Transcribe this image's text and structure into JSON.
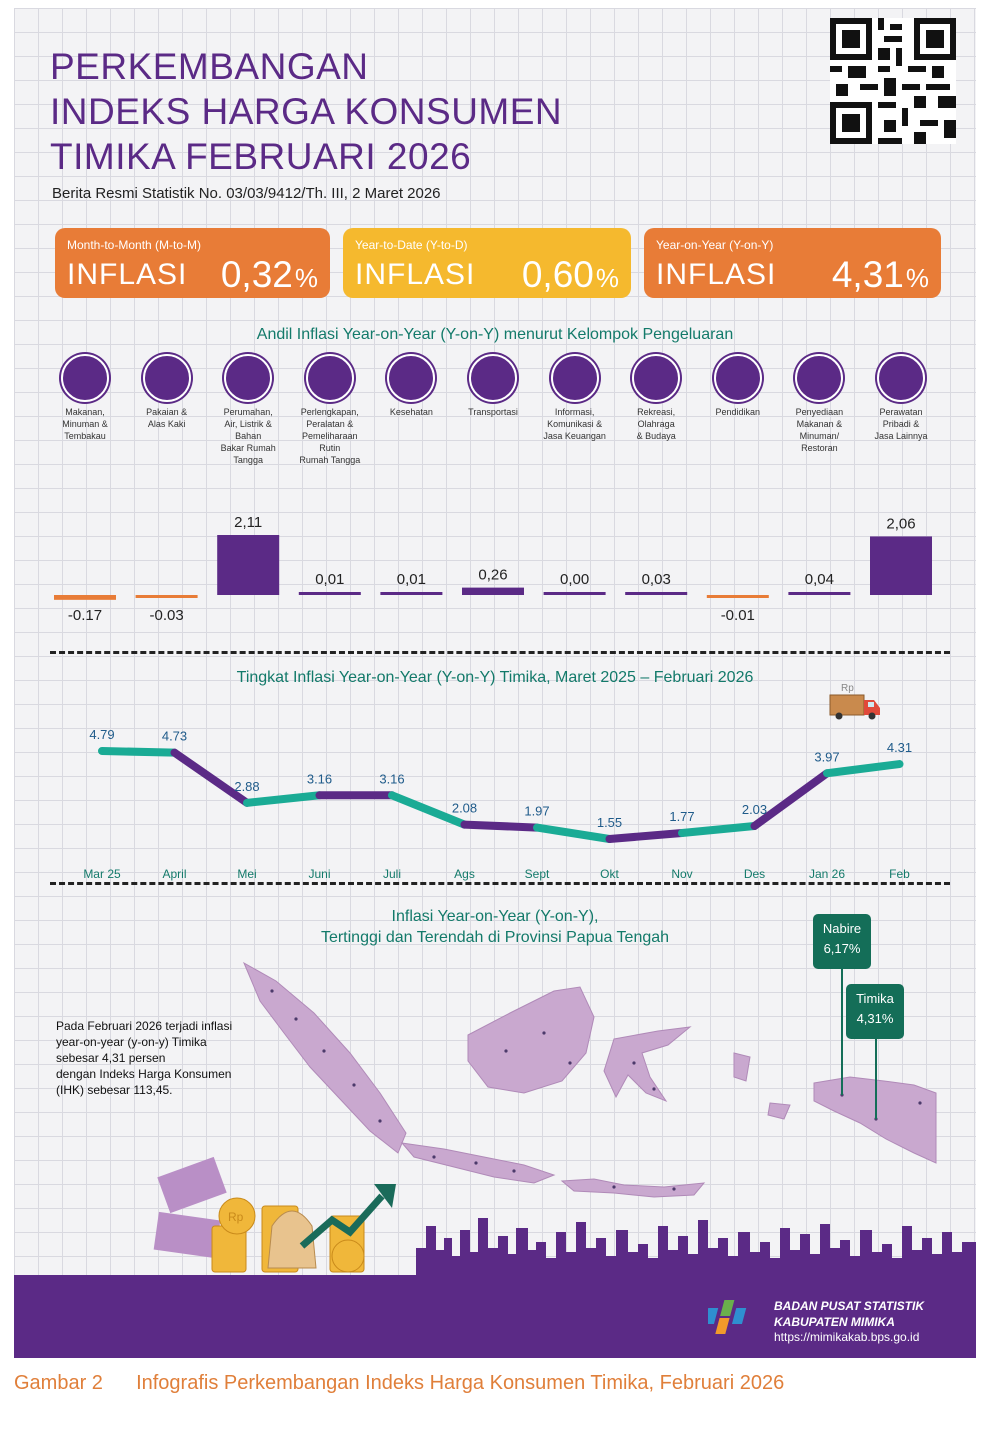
{
  "title_lines": [
    "PERKEMBANGAN",
    "INDEKS HARGA KONSUMEN",
    "TIMIKA FEBRUARI 2026"
  ],
  "subtitle": "Berita Resmi Statistik No. 03/03/9412/Th. III, 2 Maret 2026",
  "cards": [
    {
      "label": "Month-to-Month (M-to-M)",
      "keyword": "INFLASI",
      "value": "0,32",
      "unit": "%",
      "color": "#e87c37"
    },
    {
      "label": "Year-to-Date (Y-to-D)",
      "keyword": "INFLASI",
      "value": "0,60",
      "unit": "%",
      "color": "#f5b92e"
    },
    {
      "label": "Year-on-Year (Y-on-Y)",
      "keyword": "INFLASI",
      "value": "4,31",
      "unit": "%",
      "color": "#e87c37"
    }
  ],
  "colors": {
    "purple": "#5b2a86",
    "teal": "#1aab95",
    "orange": "#e87c37",
    "dark_green": "#146e58"
  },
  "chart_data": [
    {
      "type": "bar",
      "title": "Andil Inflasi Year-on-Year (Y-on-Y) menurut Kelompok Pengeluaran",
      "categories": [
        "Makanan, Minuman & Tembakau",
        "Pakaian & Alas Kaki",
        "Perumahan, Air, Listrik & Bahan Bakar Rumah Tangga",
        "Perlengkapan, Peralatan & Pemeliharaan Rutin Rumah Tangga",
        "Kesehatan",
        "Transportasi",
        "Informasi, Komunikasi & Jasa Keuangan",
        "Rekreasi, Olahraga & Budaya",
        "Pendidikan",
        "Penyediaan Makanan & Minuman/ Restoran",
        "Perawatan Pribadi & Jasa Lainnya"
      ],
      "category_lines": [
        [
          "Makanan,",
          "Minuman &",
          "Tembakau"
        ],
        [
          "Pakaian &",
          "Alas Kaki"
        ],
        [
          "Perumahan,",
          "Air, Listrik &",
          "Bahan",
          "Bakar Rumah",
          "Tangga"
        ],
        [
          "Perlengkapan,",
          "Peralatan &",
          "Pemeliharaan",
          "Rutin",
          "Rumah Tangga"
        ],
        [
          "Kesehatan"
        ],
        [
          "Transportasi"
        ],
        [
          "Informasi,",
          "Komunikasi &",
          "Jasa Keuangan"
        ],
        [
          "Rekreasi,",
          "Olahraga",
          "& Budaya"
        ],
        [
          "Pendidikan"
        ],
        [
          "Penyediaan",
          "Makanan &",
          "Minuman/",
          "Restoran"
        ],
        [
          "Perawatan",
          "Pribadi &",
          "Jasa Lainnya"
        ]
      ],
      "icons": [
        "grocery-bag-icon",
        "dress-icon",
        "house-icon",
        "appliance-icon",
        "medical-kit-icon",
        "airplane-icon",
        "smartphone-icon",
        "soccer-player-icon",
        "graduation-cap-icon",
        "fast-food-icon",
        "scissors-comb-icon"
      ],
      "values": [
        -0.17,
        -0.03,
        2.11,
        0.01,
        0.01,
        0.26,
        0.0,
        0.03,
        -0.01,
        0.04,
        2.06
      ],
      "labels": [
        "-0,17",
        "-0,03",
        "2,11",
        "0,01",
        "0,01",
        "0,26",
        "0,00",
        "0,03",
        "-0,01",
        "0,04",
        "2,06"
      ],
      "ylim": [
        -0.17,
        2.11
      ]
    },
    {
      "type": "line",
      "title": "Tingkat Inflasi Year-on-Year (Y-on-Y) Timika, Maret 2025 – Februari 2026",
      "categories": [
        "Mar 25",
        "April",
        "Mei",
        "Juni",
        "Juli",
        "Ags",
        "Sept",
        "Okt",
        "Nov",
        "Des",
        "Jan 26",
        "Feb"
      ],
      "values": [
        4.79,
        4.73,
        2.88,
        3.16,
        3.16,
        2.08,
        1.97,
        1.55,
        1.77,
        2.03,
        3.97,
        4.31
      ],
      "labels": [
        "4.79",
        "4.73",
        "2.88",
        "3.16",
        "3.16",
        "2.08",
        "1.97",
        "1.55",
        "1.77",
        "2.03",
        "3.97",
        "4.31"
      ],
      "ylim": [
        1.55,
        4.79
      ],
      "truck_label": "Rp"
    }
  ],
  "map": {
    "title_lines": [
      "Inflasi Year-on-Year (Y-on-Y),",
      "Tertinggi dan Terendah di Provinsi Papua Tengah"
    ],
    "paragraph_lines": [
      "Pada Februari 2026 terjadi inflasi",
      "year-on-year (y-on-y) Timika",
      "sebesar 4,31 persen",
      "dengan Indeks Harga Konsumen",
      "(IHK) sebesar 113,45."
    ],
    "callouts": [
      {
        "name": "Nabire",
        "value": "6,17%"
      },
      {
        "name": "Timika",
        "value": "4,31%"
      }
    ]
  },
  "decor": {
    "coin_label": "Rp"
  },
  "footer": {
    "org_line1": "BADAN PUSAT STATISTIK",
    "org_line2": "KABUPATEN MIMIKA",
    "url": "https://mimikakab.bps.go.id"
  },
  "caption": {
    "number": "Gambar 2",
    "text": "Infografis Perkembangan Indeks Harga Konsumen Timika, Februari 2026"
  }
}
